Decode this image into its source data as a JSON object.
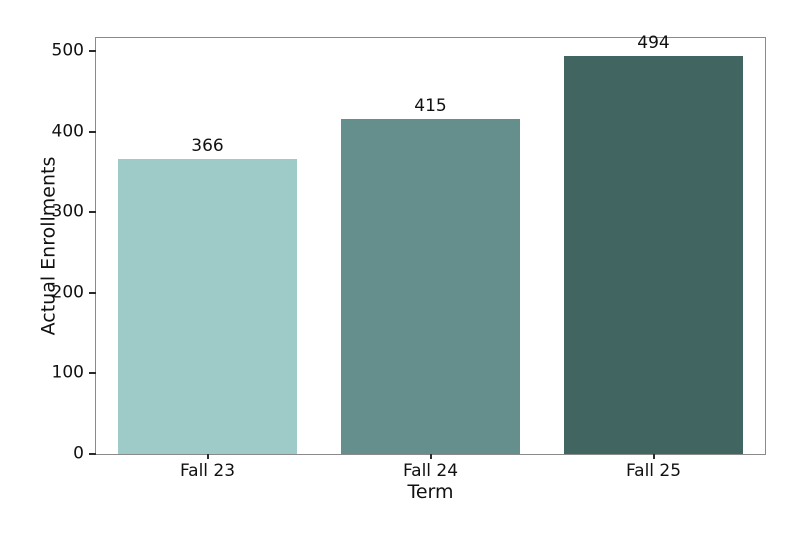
{
  "chart_data": {
    "type": "bar",
    "title": "",
    "xlabel": "Term",
    "ylabel": "Actual Enrollments",
    "categories": [
      "Fall 23",
      "Fall 24",
      "Fall 25"
    ],
    "values": [
      366,
      415,
      494
    ],
    "bar_labels": [
      "366",
      "415",
      "494"
    ],
    "bar_colors": [
      "#9ecbc7",
      "#648f8c",
      "#416661"
    ],
    "ylim": [
      0,
      516
    ],
    "yticks": [
      0,
      100,
      200,
      300,
      400,
      500
    ],
    "bar_width_fraction": 0.8,
    "grid": false,
    "legend": "none",
    "background_color": "#ffffff",
    "spine_color": "#8a8a8a",
    "tick_color": "#2b2b2b",
    "text_color": "#111111"
  }
}
